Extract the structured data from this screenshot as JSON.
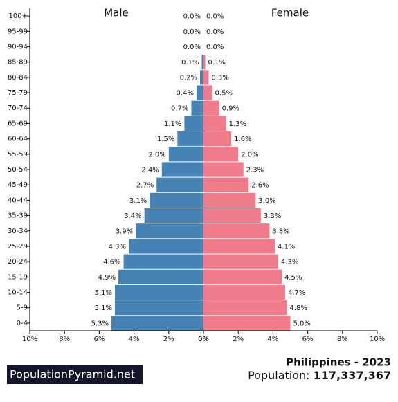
{
  "chart_data": {
    "type": "bar",
    "orientation": "horizontal",
    "categories": [
      "100+",
      "95-99",
      "90-94",
      "85-89",
      "80-84",
      "75-79",
      "70-74",
      "65-69",
      "60-64",
      "55-59",
      "50-54",
      "45-49",
      "40-44",
      "35-39",
      "30-34",
      "25-29",
      "20-24",
      "15-19",
      "10-14",
      "5-9",
      "0-4"
    ],
    "series": [
      {
        "name": "Male",
        "color": "#4682b4",
        "values": [
          0.0,
          0.0,
          0.0,
          0.1,
          0.2,
          0.4,
          0.7,
          1.1,
          1.5,
          2.0,
          2.4,
          2.7,
          3.1,
          3.4,
          3.9,
          4.3,
          4.6,
          4.9,
          5.1,
          5.1,
          5.3
        ],
        "value_labels": [
          "0.0%",
          "0.0%",
          "0.0%",
          "0.1%",
          "0.2%",
          "0.4%",
          "0.7%",
          "1.1%",
          "1.5%",
          "2.0%",
          "2.4%",
          "2.7%",
          "3.1%",
          "3.4%",
          "3.9%",
          "4.3%",
          "4.6%",
          "4.9%",
          "5.1%",
          "5.1%",
          "5.3%"
        ]
      },
      {
        "name": "Female",
        "color": "#f07b8a",
        "values": [
          0.0,
          0.0,
          0.0,
          0.1,
          0.3,
          0.5,
          0.9,
          1.3,
          1.6,
          2.0,
          2.3,
          2.6,
          3.0,
          3.3,
          3.8,
          4.1,
          4.3,
          4.5,
          4.7,
          4.8,
          5.0
        ],
        "value_labels": [
          "0.0%",
          "0.0%",
          "0.0%",
          "0.1%",
          "0.3%",
          "0.5%",
          "0.9%",
          "1.3%",
          "1.6%",
          "2.0%",
          "2.3%",
          "2.6%",
          "3.0%",
          "3.3%",
          "3.8%",
          "4.1%",
          "4.3%",
          "4.5%",
          "4.7%",
          "4.8%",
          "5.0%"
        ]
      }
    ],
    "xlim": [
      0,
      10
    ],
    "xticks": [
      {
        "value": 0,
        "label": "0%"
      },
      {
        "value": 2,
        "label": "2%"
      },
      {
        "value": 4,
        "label": "4%"
      },
      {
        "value": 6,
        "label": "6%"
      },
      {
        "value": 8,
        "label": "8%"
      },
      {
        "value": 10,
        "label": "10%"
      }
    ]
  },
  "footer": {
    "brand": "PopulationPyramid.net",
    "title": "Philippines - 2023",
    "population_label": "Population:",
    "population": "117,337,367"
  }
}
